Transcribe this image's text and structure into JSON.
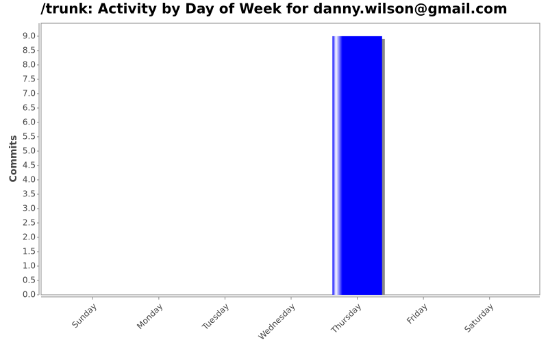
{
  "chart_data": {
    "type": "bar",
    "title": "/trunk: Activity by Day of Week for danny.wilson@gmail.com",
    "y_label": "Commits",
    "categories": [
      "Sunday",
      "Monday",
      "Tuesday",
      "Wednesday",
      "Thursday",
      "Friday",
      "Saturday"
    ],
    "values": [
      0,
      0,
      0,
      0,
      9,
      0,
      0
    ],
    "color": "#0000ff",
    "ylim": [
      0,
      9.45
    ],
    "yticks": [
      {
        "value": 0,
        "label": "0.0"
      },
      0.5,
      {
        "value": 1,
        "label": "1.0"
      },
      1.5,
      {
        "value": 2,
        "label": "2.0"
      },
      2.5,
      {
        "value": 3,
        "label": "3.0"
      },
      3.5,
      {
        "value": 4,
        "label": "4.0"
      },
      4.5,
      {
        "value": 5,
        "label": "5.0"
      },
      5.5,
      {
        "value": 6,
        "label": "6.0"
      },
      6.5,
      {
        "value": 7,
        "label": "7.0"
      },
      7.5,
      {
        "value": 8,
        "label": "8.0"
      },
      8.5,
      {
        "value": 9,
        "label": "9.0"
      }
    ]
  }
}
